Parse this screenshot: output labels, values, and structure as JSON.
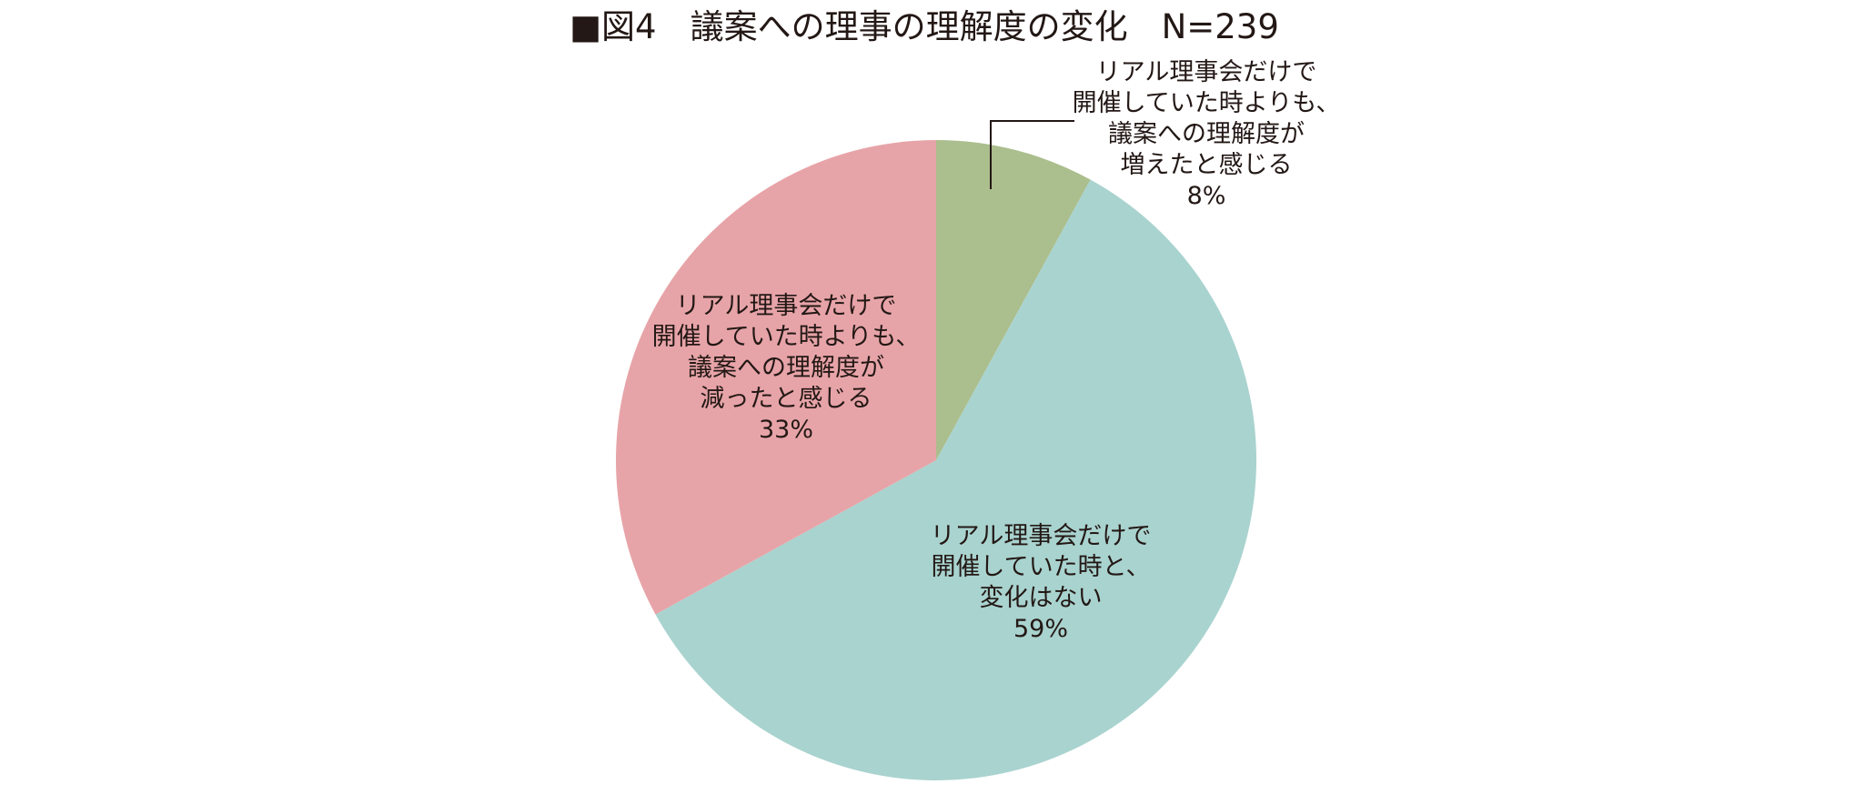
{
  "chart_data": {
    "type": "pie",
    "title": "■図4　議案への理事の理解度の変化　N=239",
    "start": "12 o'clock",
    "direction": "clockwise",
    "slices": [
      {
        "value": 8,
        "percent_label": "8%",
        "label_lines": [
          "リアル理事会だけで",
          "開催していた時よりも、",
          "議案への理解度が",
          "増えたと感じる"
        ],
        "color": "#abbe8d",
        "label_position": "outside-top-right"
      },
      {
        "value": 59,
        "percent_label": "59%",
        "label_lines": [
          "リアル理事会だけで",
          "開催していた時と、",
          "変化はない"
        ],
        "color": "#a9d3cf",
        "label_position": "inside"
      },
      {
        "value": 33,
        "percent_label": "33%",
        "label_lines": [
          "リアル理事会だけで",
          "開催していた時よりも、",
          "議案への理解度が",
          "減ったと感じる"
        ],
        "color": "#e7a4a8",
        "label_position": "inside"
      }
    ]
  }
}
